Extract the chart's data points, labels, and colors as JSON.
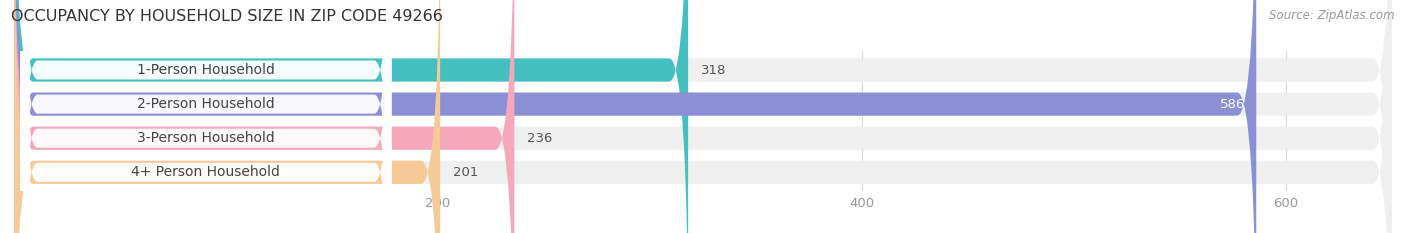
{
  "title": "OCCUPANCY BY HOUSEHOLD SIZE IN ZIP CODE 49266",
  "source": "Source: ZipAtlas.com",
  "categories": [
    "1-Person Household",
    "2-Person Household",
    "3-Person Household",
    "4+ Person Household"
  ],
  "values": [
    318,
    586,
    236,
    201
  ],
  "bar_colors": [
    "#45BFBF",
    "#8B8FD4",
    "#F5A8BC",
    "#F6CA96"
  ],
  "bar_bg_color": "#EFEFEF",
  "xlim": [
    0,
    650
  ],
  "xticks": [
    200,
    400,
    600
  ],
  "title_fontsize": 11.5,
  "source_fontsize": 8.5,
  "label_fontsize": 10,
  "value_fontsize": 9.5,
  "tick_fontsize": 9.5,
  "bar_height": 0.68,
  "background_color": "#FFFFFF"
}
